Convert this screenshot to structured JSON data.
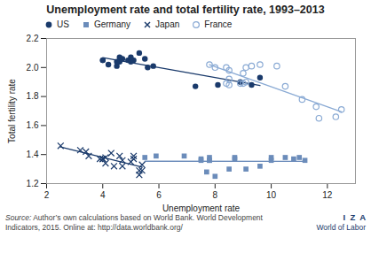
{
  "chart_data": {
    "type": "scatter",
    "title": "Unemployment rate and total fertility rate, 1993–2013",
    "xlabel": "Unemployment rate",
    "ylabel": "Total fertility rate",
    "xlim": [
      2,
      13
    ],
    "ylim": [
      1.2,
      2.2
    ],
    "xticks": [
      2,
      4,
      6,
      8,
      10,
      12
    ],
    "yticks": [
      1.2,
      1.4,
      1.6,
      1.8,
      {
        "value": 2.0,
        "label": "2.0"
      },
      2.2
    ],
    "legend": "top",
    "annotations": [
      "Source:",
      " Author’s own calculations based on World Bank. World Development\nIndicators, 2015. Online at: http://data.worldbank.org/",
      "I  Z  A",
      "World of Labor"
    ],
    "series": [
      {
        "name": "US",
        "color": "#1a3a6b",
        "marker": "circle",
        "x": [
          4.0,
          4.2,
          4.5,
          4.9,
          5.0,
          5.6,
          5.8,
          5.5,
          5.3,
          5.0,
          4.7,
          4.6,
          4.6,
          4.0,
          4.5,
          5.1,
          7.3,
          9.3,
          9.6,
          8.9,
          8.1
        ],
        "values": [
          2.05,
          2.02,
          2.01,
          2.05,
          2.07,
          2.0,
          2.01,
          2.06,
          2.1,
          2.04,
          2.06,
          2.04,
          2.07,
          2.05,
          2.04,
          2.05,
          1.87,
          1.88,
          1.93,
          1.9,
          1.88
        ]
      },
      {
        "name": "Germany",
        "color": "#6b8cba",
        "marker": "square",
        "x": [
          7.7,
          8.0,
          8.5,
          9.1,
          9.6,
          10.0,
          10.5,
          10.8,
          11.2,
          11.0,
          10.0,
          8.7,
          7.8,
          7.5,
          7.8,
          8.7,
          7.5,
          7.8,
          6.9,
          5.9,
          5.5
        ],
        "values": [
          1.28,
          1.25,
          1.3,
          1.3,
          1.32,
          1.36,
          1.38,
          1.37,
          1.36,
          1.38,
          1.38,
          1.37,
          1.36,
          1.37,
          1.38,
          1.38,
          1.36,
          1.36,
          1.39,
          1.39,
          1.38
        ]
      },
      {
        "name": "Japan",
        "color": "#1a3a6b",
        "marker": "times",
        "x": [
          2.5,
          3.2,
          3.4,
          3.5,
          4.1,
          4.7,
          5.0,
          5.4,
          5.4,
          5.3,
          5.3,
          4.7,
          4.4,
          4.1,
          3.9,
          4.0,
          4.0,
          5.1,
          5.1,
          4.6,
          4.3
        ],
        "values": [
          1.46,
          1.43,
          1.42,
          1.39,
          1.38,
          1.36,
          1.35,
          1.33,
          1.29,
          1.26,
          1.29,
          1.32,
          1.32,
          1.34,
          1.37,
          1.37,
          1.37,
          1.37,
          1.39,
          1.39,
          1.41
        ]
      },
      {
        "name": "France",
        "color": "#8aaad4",
        "marker": "circle-open",
        "x": [
          11.7,
          12.3,
          12.5,
          11.6,
          11.1,
          10.5,
          9.0,
          8.4,
          8.5,
          8.9,
          9.1,
          8.5,
          9.0,
          8.5,
          8.4,
          8.0,
          7.8,
          9.1,
          9.3,
          9.6,
          10.2
        ],
        "values": [
          1.65,
          1.66,
          1.71,
          1.73,
          1.78,
          1.87,
          1.89,
          1.89,
          1.88,
          1.89,
          1.9,
          1.92,
          1.96,
          1.98,
          2.0,
          2.0,
          2.02,
          2.0,
          2.01,
          2.02,
          2.01
        ]
      }
    ]
  }
}
